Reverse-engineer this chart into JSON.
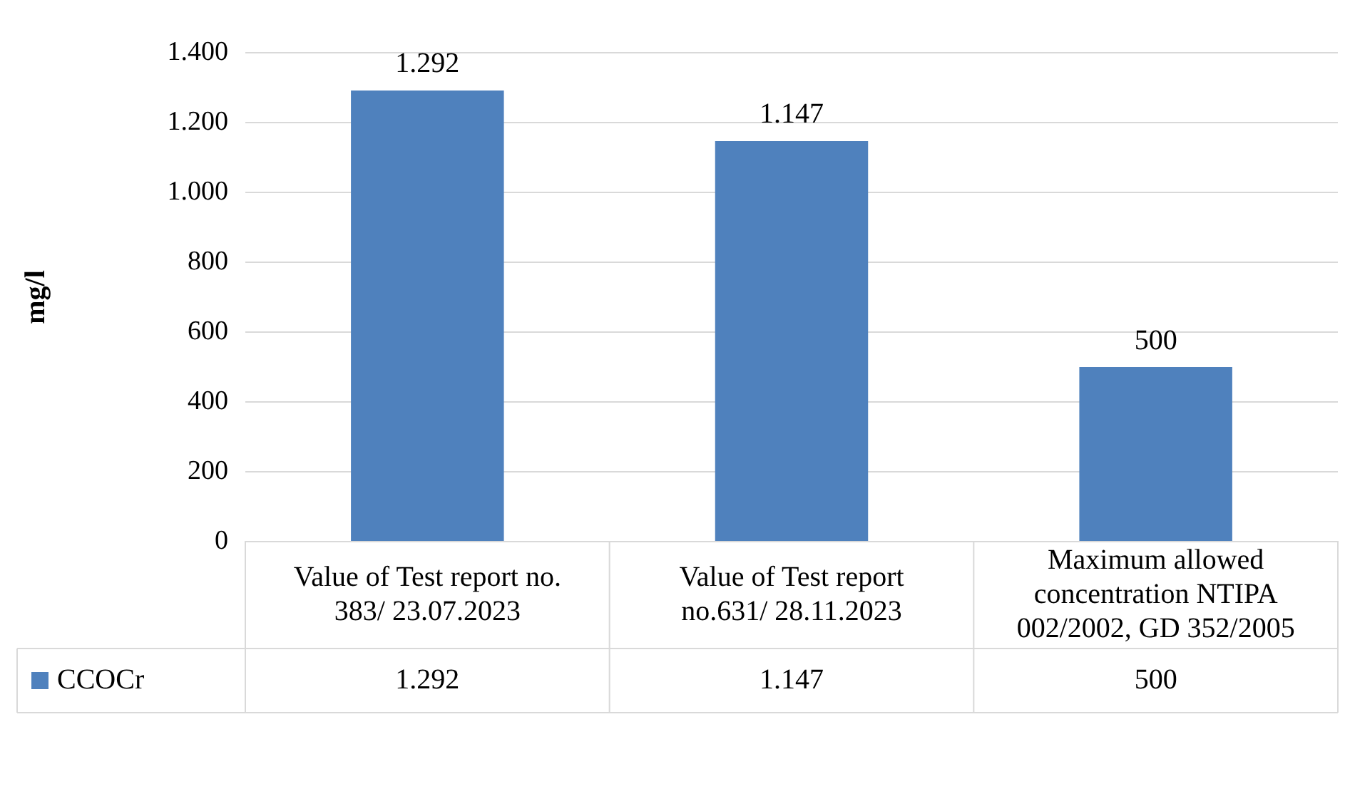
{
  "chart_data": {
    "type": "bar",
    "ylabel": "mg/l",
    "categories": [
      "Value of Test report no. 383/ 23.07.2023",
      "Value of Test report no.631/ 28.11.2023",
      "Maximum allowed concentration NTIPA 002/2002, GD 352/2005"
    ],
    "series": [
      {
        "name": "CCOCr",
        "color": "#4f81bd",
        "values": [
          1292,
          1147,
          500
        ],
        "value_labels": [
          "1.292",
          "1.147",
          "500"
        ]
      }
    ],
    "ylim": [
      0,
      1400
    ],
    "yticks": [
      {
        "value": 0,
        "label": "0"
      },
      {
        "value": 200,
        "label": "200"
      },
      {
        "value": 400,
        "label": "400"
      },
      {
        "value": 600,
        "label": "600"
      },
      {
        "value": 800,
        "label": "800"
      },
      {
        "value": 1000,
        "label": "1.000"
      },
      {
        "value": 1200,
        "label": "1.200"
      },
      {
        "value": 1400,
        "label": "1.400"
      }
    ],
    "grid": "y",
    "legend": "bottom"
  }
}
